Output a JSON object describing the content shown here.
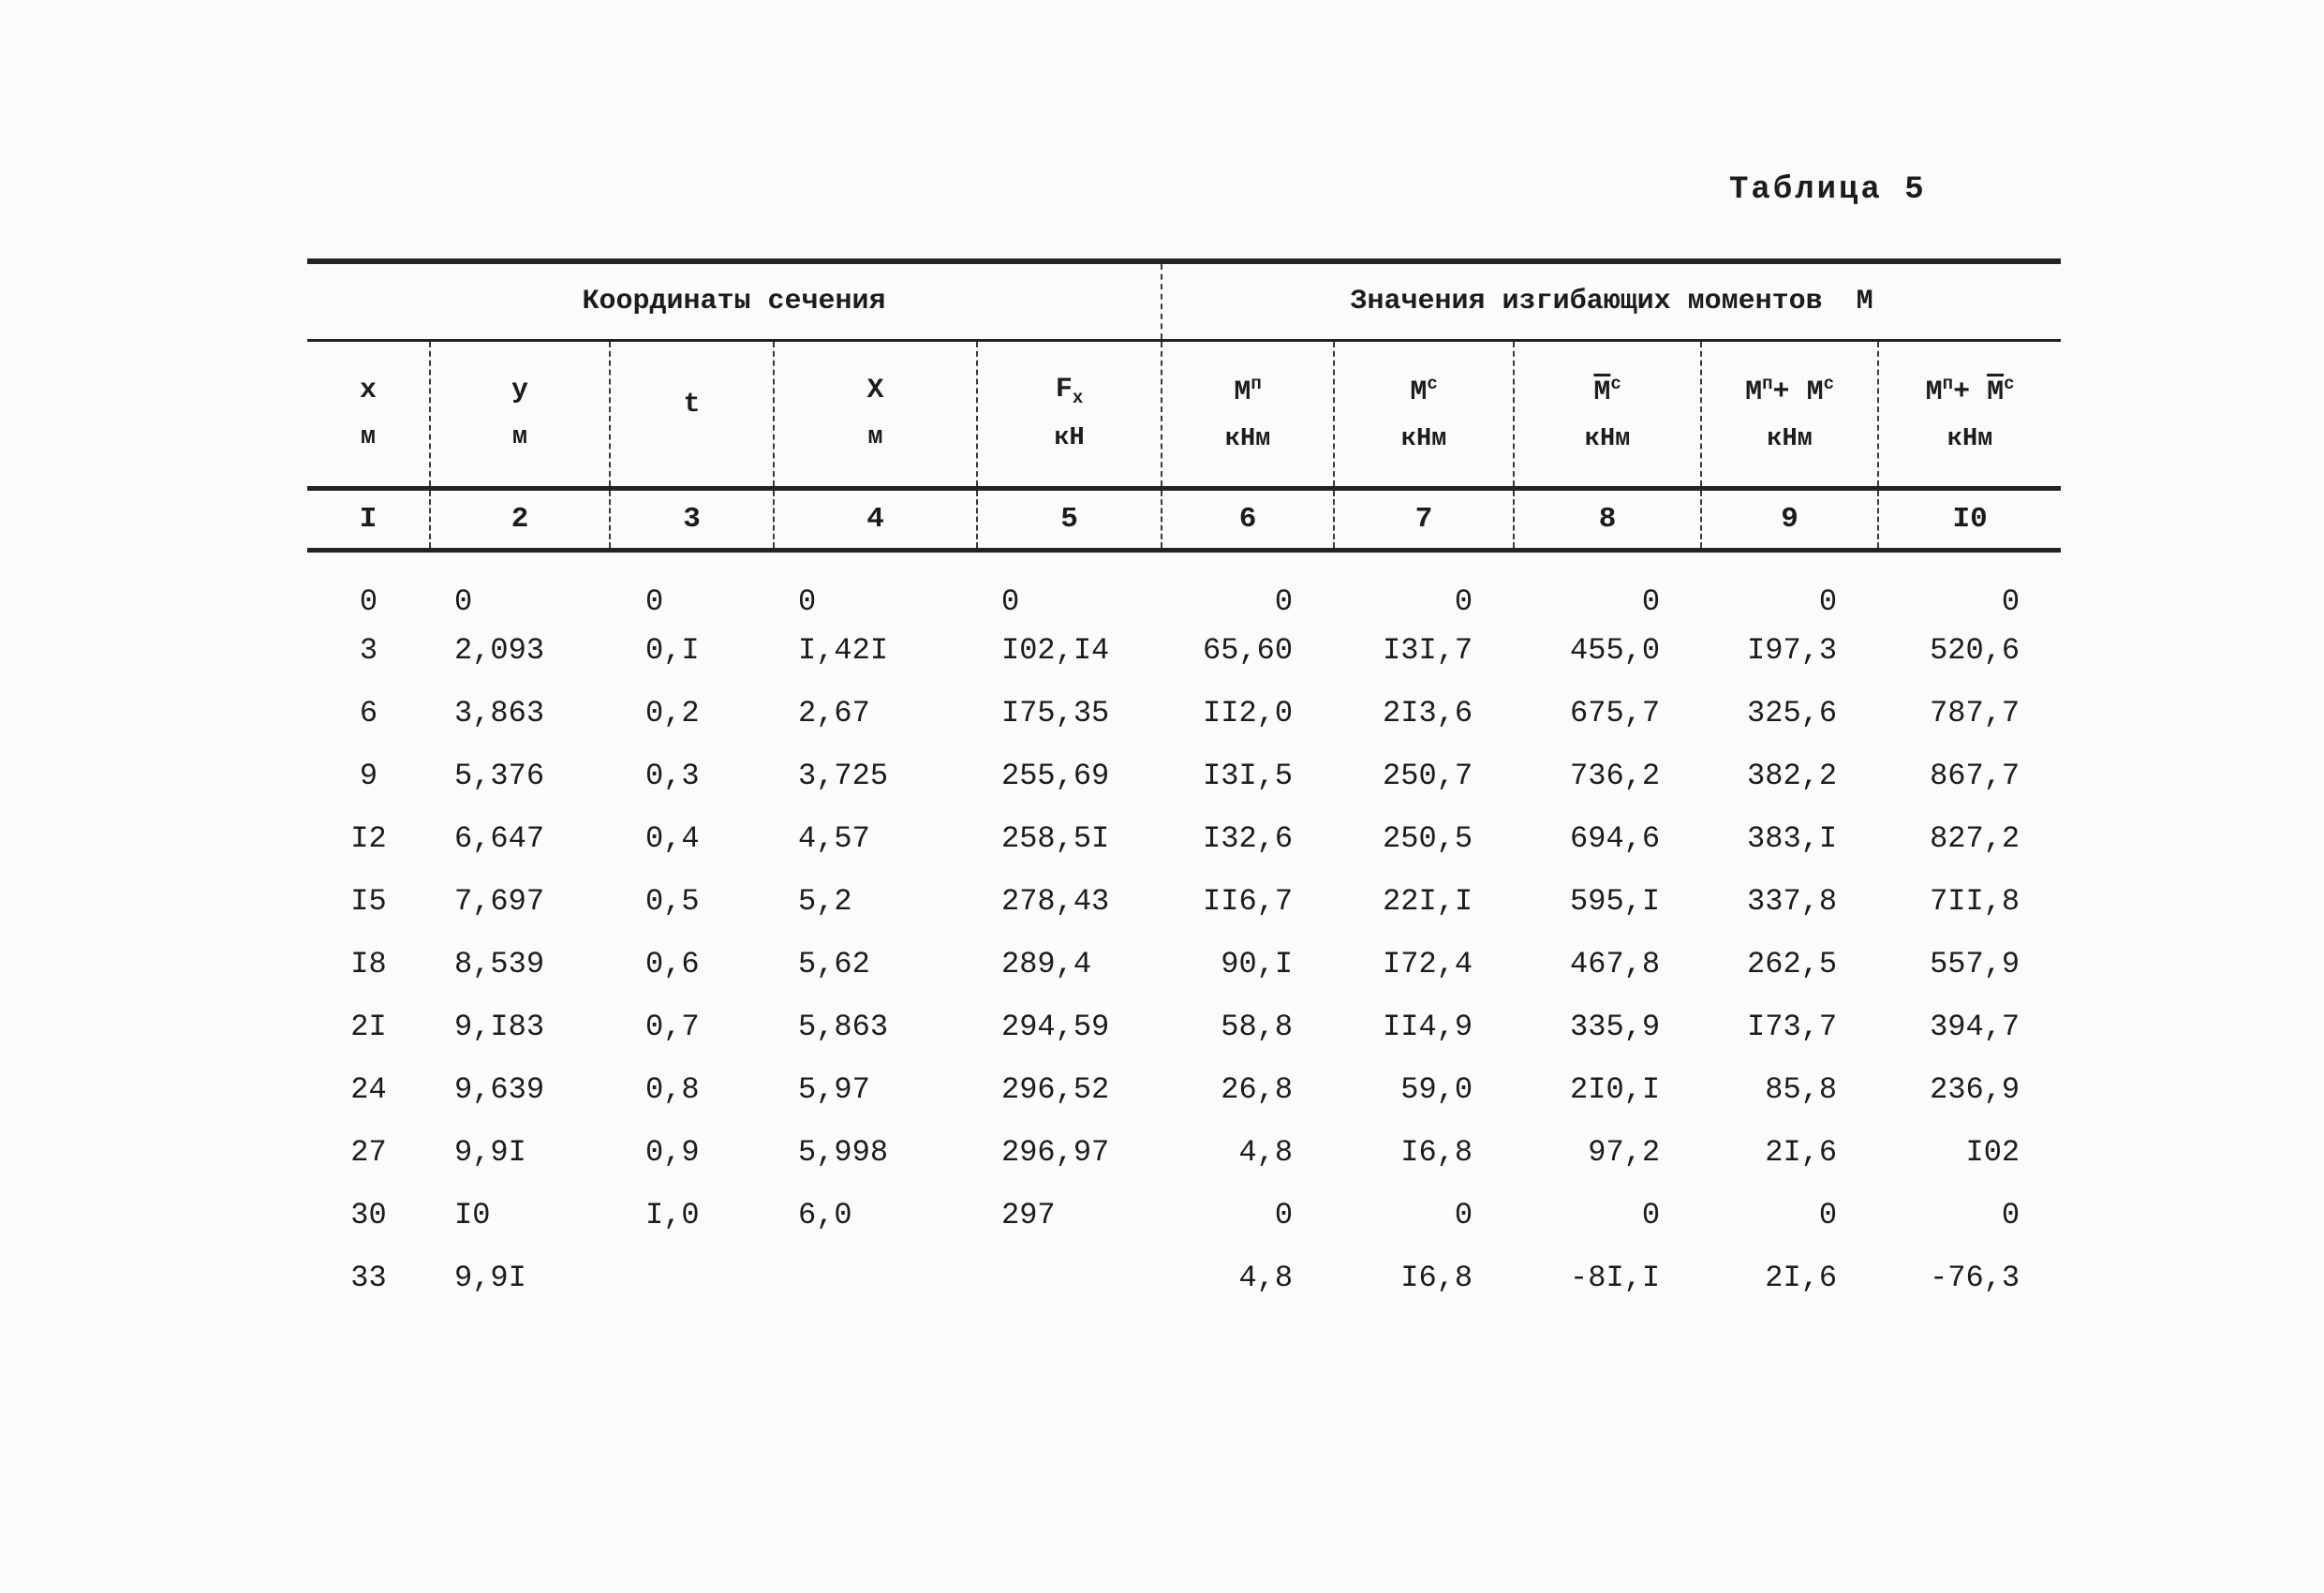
{
  "page": {
    "caption": "Таблица 5"
  },
  "table": {
    "group_headers": [
      {
        "label": "Координаты сечения"
      },
      {
        "label": "Значения изгибающих моментов  М"
      }
    ],
    "columns": [
      {
        "main": "x",
        "unit": "м"
      },
      {
        "main": "y",
        "unit": "м"
      },
      {
        "main": "t",
        "unit": ""
      },
      {
        "main": "X",
        "unit": "м"
      },
      {
        "main": "F",
        "sub": "x",
        "unit": "кН"
      },
      {
        "main": "M",
        "sup": "п",
        "unit": "кНм"
      },
      {
        "main": "M",
        "sup": "с",
        "unit": "кНм"
      },
      {
        "main": "M",
        "sup": "с",
        "overline": true,
        "unit": "кНм"
      },
      {
        "parts": [
          {
            "main": "M",
            "sup": "п"
          },
          {
            "text": "+ "
          },
          {
            "main": "M",
            "sup": "с"
          }
        ],
        "unit": "кНм"
      },
      {
        "parts": [
          {
            "main": "M",
            "sup": "п"
          },
          {
            "text": "+ "
          },
          {
            "main": "M",
            "sup": "с",
            "overline": true
          }
        ],
        "unit": "кНм"
      }
    ],
    "column_numbers": [
      "I",
      "2",
      "3",
      "4",
      "5",
      "6",
      "7",
      "8",
      "9",
      "I0"
    ],
    "rows": [
      [
        "0",
        "0",
        "0",
        "0",
        "0",
        "0",
        "0",
        "0",
        "0",
        "0"
      ],
      [
        "3",
        "2,093",
        "0,I",
        "I,42I",
        "I02,I4",
        "65,60",
        "I3I,7",
        "455,0",
        "I97,3",
        "520,6"
      ],
      [
        "6",
        "3,863",
        "0,2",
        "2,67",
        "I75,35",
        "II2,0",
        "2I3,6",
        "675,7",
        "325,6",
        "787,7"
      ],
      [
        "9",
        "5,376",
        "0,3",
        "3,725",
        "255,69",
        "I3I,5",
        "250,7",
        "736,2",
        "382,2",
        "867,7"
      ],
      [
        "I2",
        "6,647",
        "0,4",
        "4,57",
        "258,5I",
        "I32,6",
        "250,5",
        "694,6",
        "383,I",
        "827,2"
      ],
      [
        "I5",
        "7,697",
        "0,5",
        "5,2",
        "278,43",
        "II6,7",
        "22I,I",
        "595,I",
        "337,8",
        "7II,8"
      ],
      [
        "I8",
        "8,539",
        "0,6",
        "5,62",
        "289,4",
        "90,I",
        "I72,4",
        "467,8",
        "262,5",
        "557,9"
      ],
      [
        "2I",
        "9,I83",
        "0,7",
        "5,863",
        "294,59",
        "58,8",
        "II4,9",
        "335,9",
        "I73,7",
        "394,7"
      ],
      [
        "24",
        "9,639",
        "0,8",
        "5,97",
        "296,52",
        "26,8",
        "59,0",
        "2I0,I",
        "85,8",
        "236,9"
      ],
      [
        "27",
        "9,9I",
        "0,9",
        "5,998",
        "296,97",
        "4,8",
        "I6,8",
        "97,2",
        "2I,6",
        "I02"
      ],
      [
        "30",
        "I0",
        "I,0",
        "6,0",
        "297",
        "0",
        "0",
        "0",
        "0",
        "0"
      ],
      [
        "33",
        "9,9I",
        "",
        "",
        "",
        "4,8",
        "I6,8",
        "-8I,I",
        "2I,6",
        "-76,3"
      ]
    ]
  }
}
